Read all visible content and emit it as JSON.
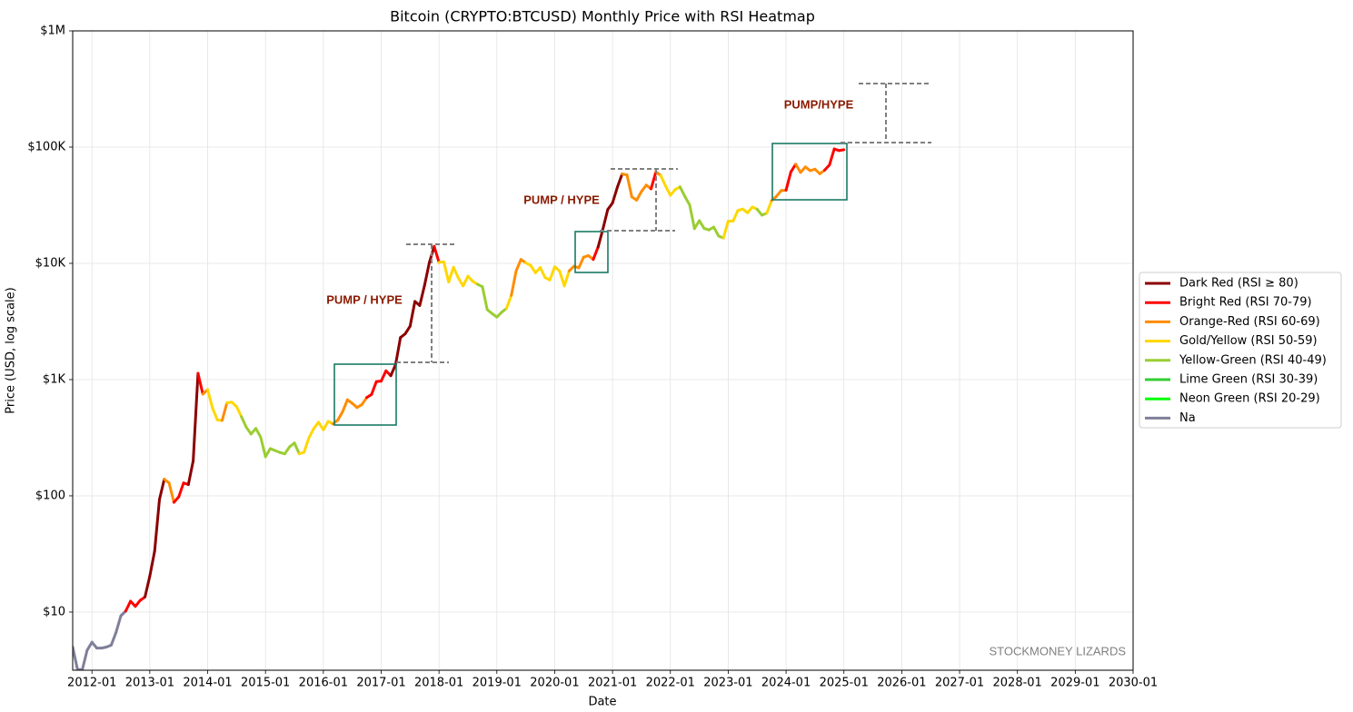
{
  "chart_data": {
    "type": "line",
    "title": "Bitcoin (CRYPTO:BTCUSD) Monthly Price with RSI Heatmap",
    "xlabel": "Date",
    "ylabel": "Price (USD, log scale)",
    "log_y": true,
    "grid": true,
    "legend_loc": "center right",
    "xlim": [
      "2011-09",
      "2030-01"
    ],
    "xticks": [
      "2012-01",
      "2013-01",
      "2014-01",
      "2015-01",
      "2016-01",
      "2017-01",
      "2018-01",
      "2019-01",
      "2020-01",
      "2021-01",
      "2022-01",
      "2023-01",
      "2024-01",
      "2025-01",
      "2026-01",
      "2027-01",
      "2028-01",
      "2029-01",
      "2030-01"
    ],
    "ylim": [
      3.16,
      1000000
    ],
    "yticks": [
      {
        "value": 10,
        "label": "$10"
      },
      {
        "value": 100,
        "label": "$100"
      },
      {
        "value": 1000,
        "label": "$1K"
      },
      {
        "value": 10000,
        "label": "$10K"
      },
      {
        "value": 100000,
        "label": "$100K"
      },
      {
        "value": 1000000,
        "label": "$1M"
      }
    ],
    "zones": [
      {
        "name": "Dark Red (RSI ≥ 80)",
        "color": "#8b0000"
      },
      {
        "name": "Bright Red (RSI 70-79)",
        "color": "#ff0000"
      },
      {
        "name": "Orange-Red (RSI 60-69)",
        "color": "#ff8c00"
      },
      {
        "name": "Gold/Yellow (RSI 50-59)",
        "color": "#ffd700"
      },
      {
        "name": "Yellow-Green (RSI 40-49)",
        "color": "#9acd32"
      },
      {
        "name": "Lime Green (RSI 30-39)",
        "color": "#32cd32"
      },
      {
        "name": "Neon Green (RSI 20-29)",
        "color": "#00ff00"
      },
      {
        "name": "Na",
        "color": "#7f7f9a"
      }
    ],
    "x": [
      "2011-09",
      "2011-10",
      "2011-11",
      "2011-12",
      "2012-01",
      "2012-02",
      "2012-03",
      "2012-04",
      "2012-05",
      "2012-06",
      "2012-07",
      "2012-08",
      "2012-09",
      "2012-10",
      "2012-11",
      "2012-12",
      "2013-01",
      "2013-02",
      "2013-03",
      "2013-04",
      "2013-05",
      "2013-06",
      "2013-07",
      "2013-08",
      "2013-09",
      "2013-10",
      "2013-11",
      "2013-12",
      "2014-01",
      "2014-02",
      "2014-03",
      "2014-04",
      "2014-05",
      "2014-06",
      "2014-07",
      "2014-08",
      "2014-09",
      "2014-10",
      "2014-11",
      "2014-12",
      "2015-01",
      "2015-02",
      "2015-03",
      "2015-04",
      "2015-05",
      "2015-06",
      "2015-07",
      "2015-08",
      "2015-09",
      "2015-10",
      "2015-11",
      "2015-12",
      "2016-01",
      "2016-02",
      "2016-03",
      "2016-04",
      "2016-05",
      "2016-06",
      "2016-07",
      "2016-08",
      "2016-09",
      "2016-10",
      "2016-11",
      "2016-12",
      "2017-01",
      "2017-02",
      "2017-03",
      "2017-04",
      "2017-05",
      "2017-06",
      "2017-07",
      "2017-08",
      "2017-09",
      "2017-10",
      "2017-11",
      "2017-12",
      "2018-01",
      "2018-02",
      "2018-03",
      "2018-04",
      "2018-05",
      "2018-06",
      "2018-07",
      "2018-08",
      "2018-09",
      "2018-10",
      "2018-11",
      "2018-12",
      "2019-01",
      "2019-02",
      "2019-03",
      "2019-04",
      "2019-05",
      "2019-06",
      "2019-07",
      "2019-08",
      "2019-09",
      "2019-10",
      "2019-11",
      "2019-12",
      "2020-01",
      "2020-02",
      "2020-03",
      "2020-04",
      "2020-05",
      "2020-06",
      "2020-07",
      "2020-08",
      "2020-09",
      "2020-10",
      "2020-11",
      "2020-12",
      "2021-01",
      "2021-02",
      "2021-03",
      "2021-04",
      "2021-05",
      "2021-06",
      "2021-07",
      "2021-08",
      "2021-09",
      "2021-10",
      "2021-11",
      "2021-12",
      "2022-01",
      "2022-02",
      "2022-03",
      "2022-04",
      "2022-05",
      "2022-06",
      "2022-07",
      "2022-08",
      "2022-09",
      "2022-10",
      "2022-11",
      "2022-12",
      "2023-01",
      "2023-02",
      "2023-03",
      "2023-04",
      "2023-05",
      "2023-06",
      "2023-07",
      "2023-08",
      "2023-09",
      "2023-10",
      "2023-11",
      "2023-12",
      "2024-01",
      "2024-02",
      "2024-03",
      "2024-04",
      "2024-05",
      "2024-06",
      "2024-07",
      "2024-08",
      "2024-09",
      "2024-10",
      "2024-11",
      "2024-12",
      "2025-01"
    ],
    "values": [
      5,
      3.2,
      3.2,
      4.7,
      5.5,
      4.9,
      4.9,
      5.0,
      5.2,
      6.7,
      9.3,
      10.2,
      12.4,
      11.2,
      12.6,
      13.5,
      20.4,
      33.4,
      93,
      139,
      129,
      88,
      98,
      129,
      125,
      200,
      1130,
      750,
      820,
      570,
      450,
      445,
      630,
      640,
      585,
      480,
      390,
      340,
      380,
      320,
      217,
      255,
      245,
      236,
      230,
      264,
      285,
      230,
      237,
      315,
      378,
      430,
      370,
      437,
      416,
      448,
      530,
      670,
      625,
      575,
      610,
      700,
      745,
      960,
      970,
      1190,
      1080,
      1350,
      2300,
      2480,
      2880,
      4700,
      4340,
      6470,
      10200,
      14000,
      10200,
      10300,
      6900,
      9250,
      7500,
      6400,
      7750,
      7000,
      6600,
      6300,
      4000,
      3700,
      3450,
      3800,
      4100,
      5300,
      8600,
      10800,
      10100,
      9600,
      8300,
      9200,
      7550,
      7200,
      9350,
      8600,
      6400,
      8600,
      9450,
      9150,
      11300,
      11650,
      10800,
      13800,
      19700,
      29000,
      33100,
      45200,
      58800,
      57700,
      37300,
      35000,
      41500,
      47100,
      43800,
      61300,
      57000,
      46300,
      38500,
      43200,
      45500,
      37700,
      31800,
      19900,
      23300,
      20000,
      19400,
      20500,
      17200,
      16500,
      23100,
      23100,
      28500,
      29300,
      27200,
      30500,
      29200,
      26000,
      27000,
      34700,
      37700,
      42300,
      42600,
      61200,
      71300,
      60600,
      67500,
      62700,
      64600,
      59000,
      63300,
      70200,
      96400,
      93400,
      95000
    ],
    "rsi_zone": [
      7,
      7,
      7,
      7,
      7,
      7,
      7,
      7,
      7,
      7,
      7,
      7,
      1,
      1,
      1,
      1,
      0,
      0,
      0,
      0,
      2,
      2,
      1,
      1,
      1,
      0,
      0,
      1,
      2,
      3,
      3,
      3,
      2,
      3,
      3,
      3,
      4,
      4,
      4,
      4,
      4,
      4,
      4,
      4,
      4,
      4,
      4,
      4,
      3,
      3,
      3,
      3,
      3,
      3,
      3,
      2,
      2,
      2,
      2,
      2,
      2,
      2,
      1,
      1,
      1,
      1,
      1,
      0,
      0,
      0,
      0,
      0,
      0,
      0,
      0,
      0,
      1,
      3,
      3,
      3,
      3,
      3,
      3,
      3,
      3,
      4,
      4,
      4,
      4,
      4,
      4,
      3,
      2,
      2,
      2,
      3,
      3,
      3,
      3,
      3,
      3,
      3,
      3,
      3,
      2,
      2,
      2,
      2,
      2,
      1,
      0,
      0,
      0,
      0,
      0,
      2,
      2,
      2,
      2,
      2,
      2,
      1,
      2,
      3,
      3,
      3,
      3,
      4,
      4,
      4,
      4,
      4,
      4,
      4,
      4,
      4,
      3,
      3,
      3,
      3,
      3,
      3,
      3,
      4,
      4,
      3,
      2,
      2,
      2,
      1,
      1,
      2,
      2,
      2,
      2,
      2,
      2,
      1,
      1,
      1,
      1
    ],
    "annotations": [
      "PUMP / HYPE",
      "PUMP / HYPE",
      "PUMP/HYPE"
    ],
    "watermark": "STOCKMONEY LIZARDS"
  }
}
